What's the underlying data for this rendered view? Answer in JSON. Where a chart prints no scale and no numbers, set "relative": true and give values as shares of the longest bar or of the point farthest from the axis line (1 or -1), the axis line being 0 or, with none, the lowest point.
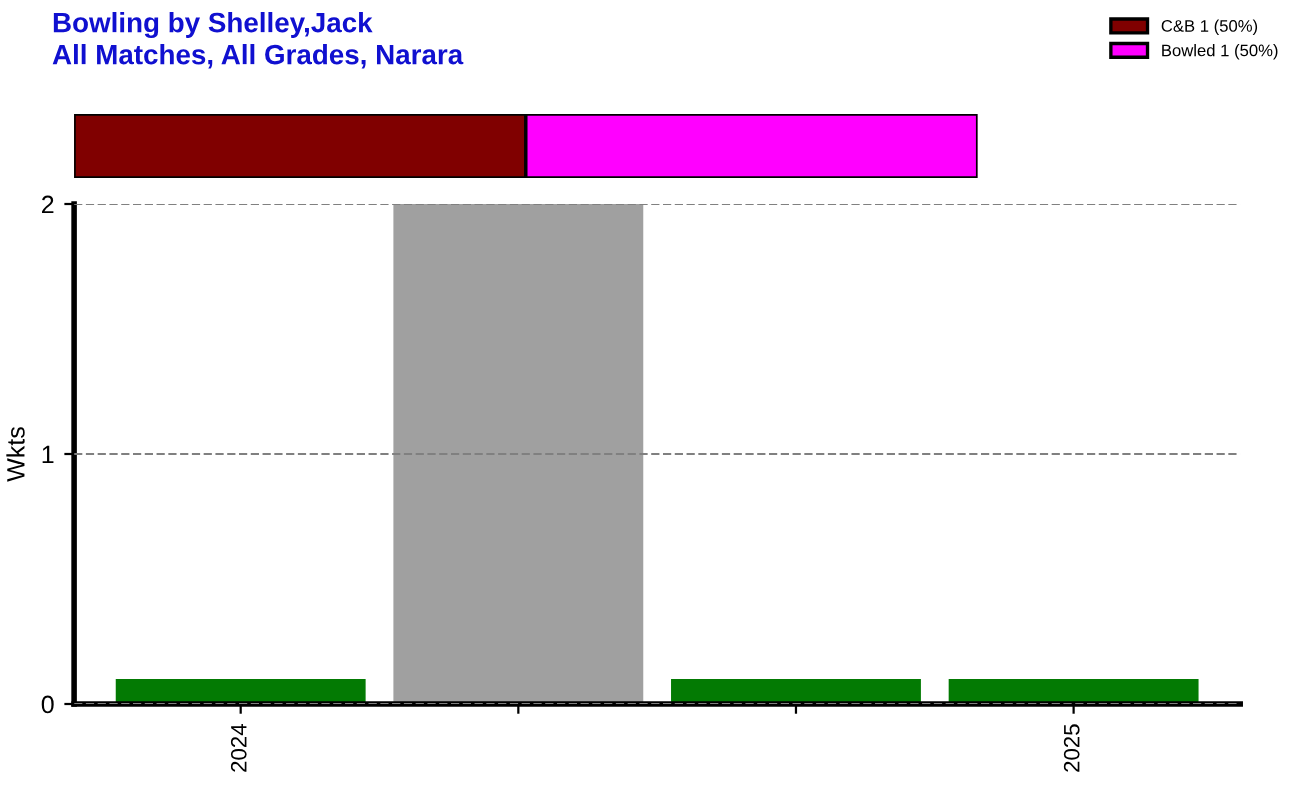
{
  "chart_data": [
    {
      "type": "bar",
      "title": "Bowling by Shelley,Jack",
      "subtitle": "All Matches, All Grades, Narara",
      "orientation": "horizontal",
      "stacked": true,
      "relative": true,
      "categories": [
        null
      ],
      "tick_labels": false,
      "legend": "top right",
      "series": [
        {
          "name": "C&B 1 (50%)",
          "color": "#800000",
          "values": [
            0.5
          ]
        },
        {
          "name": "Bowled 1 (50%)",
          "color": "#ff00ff",
          "values": [
            0.5
          ]
        }
      ]
    },
    {
      "type": "bar",
      "categories": [
        "2024",
        null,
        null,
        "2025"
      ],
      "values": [
        0.1,
        2,
        0.1,
        0.1
      ],
      "colors": [
        "#037a03",
        "#a0a0a0",
        "#037a03",
        "#037a03"
      ],
      "ylabel": "Wkts",
      "ylim": [
        0,
        2
      ],
      "yticks": [
        0,
        1,
        2
      ],
      "grid": "y"
    }
  ]
}
